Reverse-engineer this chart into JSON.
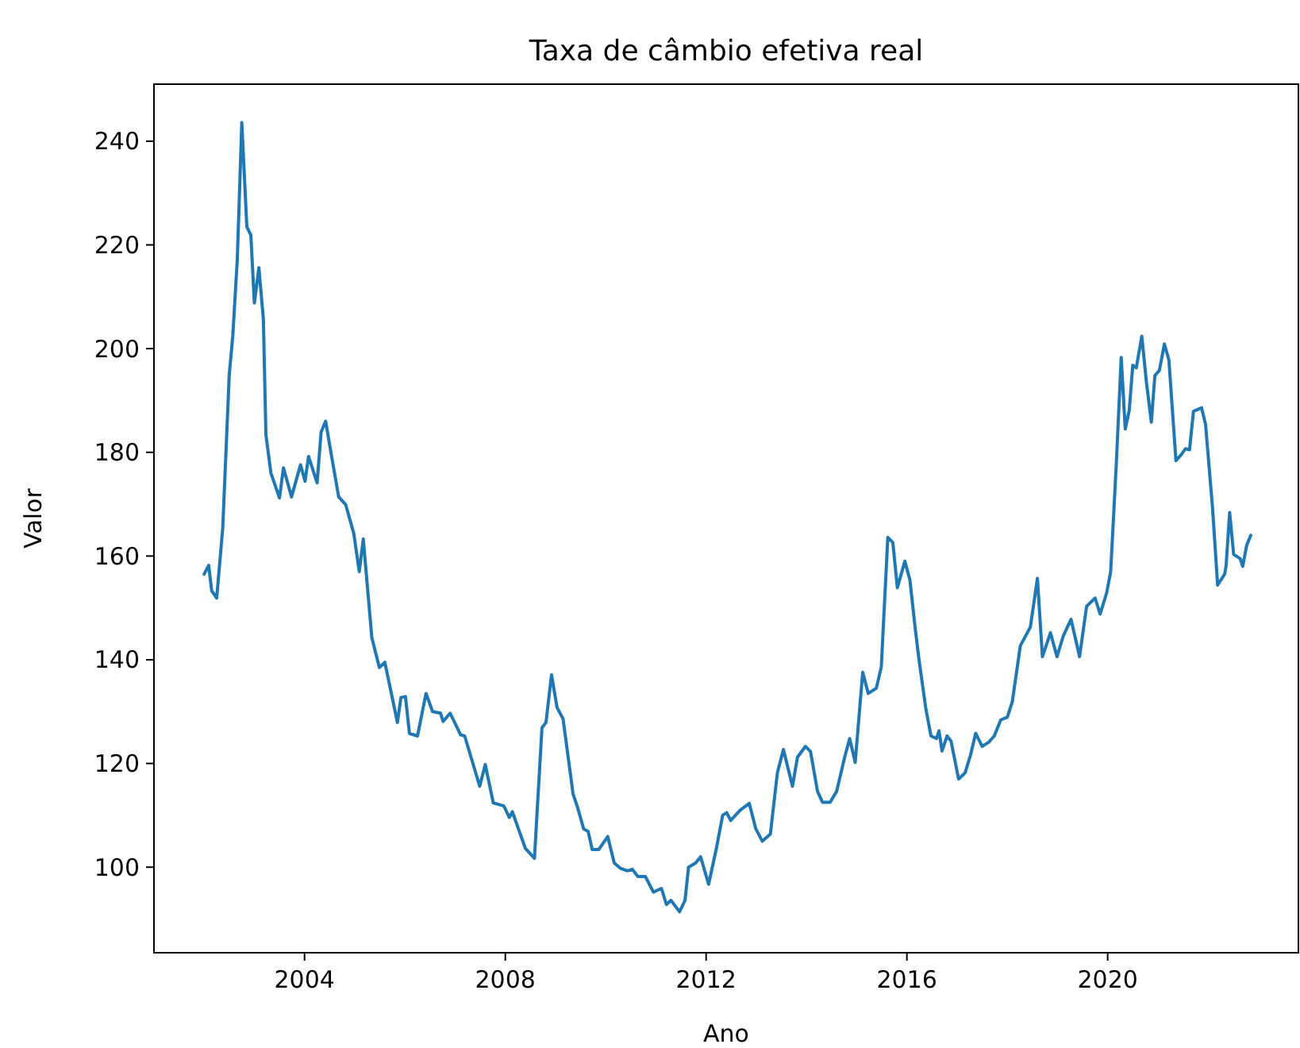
{
  "chart_data": {
    "type": "line",
    "title": "Taxa de câmbio efetiva real",
    "xlabel": "Ano",
    "ylabel": "Valor",
    "xlim": [
      2001.0,
      2023.8
    ],
    "ylim": [
      83.5,
      251
    ],
    "xticks": [
      2004,
      2008,
      2012,
      2016,
      2020
    ],
    "yticks": [
      100,
      120,
      140,
      160,
      180,
      200,
      220,
      240
    ],
    "grid": false,
    "series": [
      {
        "color": "#1f77b4",
        "x": [
          2002.0,
          2002.09,
          2002.15,
          2002.25,
          2002.37,
          2002.5,
          2002.57,
          2002.66,
          2002.75,
          2002.85,
          2002.93,
          2003.0,
          2003.09,
          2003.18,
          2003.23,
          2003.33,
          2003.5,
          2003.58,
          2003.74,
          2003.92,
          2004.01,
          2004.08,
          2004.25,
          2004.33,
          2004.42,
          2004.53,
          2004.68,
          2004.82,
          2004.98,
          2005.09,
          2005.17,
          2005.34,
          2005.49,
          2005.6,
          2005.85,
          2005.92,
          2006.01,
          2006.09,
          2006.25,
          2006.42,
          2006.55,
          2006.71,
          2006.76,
          2006.9,
          2007.11,
          2007.19,
          2007.49,
          2007.6,
          2007.76,
          2007.97,
          2008.08,
          2008.14,
          2008.4,
          2008.58,
          2008.73,
          2008.81,
          2008.92,
          2009.03,
          2009.15,
          2009.35,
          2009.44,
          2009.56,
          2009.65,
          2009.73,
          2009.86,
          2010.04,
          2010.17,
          2010.29,
          2010.43,
          2010.53,
          2010.64,
          2010.79,
          2010.95,
          2011.11,
          2011.21,
          2011.3,
          2011.47,
          2011.58,
          2011.65,
          2011.79,
          2011.89,
          2012.05,
          2012.2,
          2012.33,
          2012.41,
          2012.49,
          2012.68,
          2012.86,
          2012.99,
          2013.12,
          2013.28,
          2013.42,
          2013.54,
          2013.72,
          2013.82,
          2013.98,
          2014.08,
          2014.22,
          2014.32,
          2014.47,
          2014.6,
          2014.76,
          2014.86,
          2014.97,
          2015.12,
          2015.23,
          2015.39,
          2015.49,
          2015.62,
          2015.72,
          2015.81,
          2015.96,
          2016.06,
          2016.17,
          2016.24,
          2016.38,
          2016.48,
          2016.59,
          2016.64,
          2016.7,
          2016.8,
          2016.88,
          2017.03,
          2017.16,
          2017.27,
          2017.37,
          2017.5,
          2017.63,
          2017.74,
          2017.87,
          2018.0,
          2018.1,
          2018.26,
          2018.46,
          2018.6,
          2018.7,
          2018.86,
          2018.99,
          2019.12,
          2019.27,
          2019.44,
          2019.58,
          2019.75,
          2019.85,
          2019.98,
          2020.06,
          2020.17,
          2020.27,
          2020.35,
          2020.43,
          2020.5,
          2020.57,
          2020.68,
          2020.77,
          2020.87,
          2020.94,
          2021.03,
          2021.13,
          2021.22,
          2021.36,
          2021.47,
          2021.55,
          2021.63,
          2021.71,
          2021.87,
          2021.95,
          2022.09,
          2022.19,
          2022.33,
          2022.36,
          2022.43,
          2022.51,
          2022.64,
          2022.69,
          2022.77,
          2022.85
        ],
        "values": [
          156.5,
          158.2,
          153.3,
          151.9,
          165.4,
          195,
          202.4,
          217.2,
          243.6,
          223.5,
          221.9,
          208.8,
          215.6,
          205.6,
          183.4,
          176,
          171.2,
          177,
          171.4,
          177.6,
          174.4,
          179.2,
          174.1,
          183.9,
          186,
          179.7,
          171.4,
          169.9,
          164.4,
          157,
          163.3,
          144.3,
          138.5,
          139.5,
          127.9,
          132.7,
          132.9,
          125.8,
          125.3,
          133.5,
          130,
          129.7,
          128.1,
          129.7,
          125.5,
          125.3,
          115.6,
          119.8,
          112.4,
          111.8,
          109.6,
          110.7,
          103.6,
          101.7,
          126.9,
          127.9,
          137.1,
          130.8,
          128.6,
          114.1,
          111.5,
          107.4,
          106.9,
          103.4,
          103.4,
          105.9,
          100.8,
          99.8,
          99.3,
          99.6,
          98.2,
          98.2,
          95.2,
          95.9,
          92.8,
          93.6,
          91.4,
          93.6,
          100,
          100.8,
          102,
          96.7,
          103.4,
          110,
          110.5,
          109,
          111,
          112.3,
          107.4,
          105,
          106.4,
          118.2,
          122.7,
          115.6,
          121.2,
          123.3,
          122.3,
          114.6,
          112.5,
          112.5,
          114.6,
          121.2,
          124.8,
          120.2,
          137.6,
          133.5,
          134.5,
          138.6,
          163.6,
          162.6,
          153.9,
          159,
          155.4,
          145.7,
          140.1,
          130.4,
          125.3,
          124.8,
          126.3,
          122.4,
          125.3,
          124.3,
          117,
          118.2,
          121.7,
          125.8,
          123.3,
          124.1,
          125.3,
          128.4,
          128.9,
          131.9,
          142.7,
          146.3,
          155.7,
          140.6,
          145.2,
          140.6,
          144.7,
          147.8,
          140.6,
          150.3,
          151.9,
          148.8,
          152.9,
          157,
          177.4,
          198.3,
          184.5,
          188.1,
          196.8,
          196.3,
          202.4,
          193.7,
          185.8,
          194.8,
          195.8,
          200.9,
          197.8,
          178.4,
          179.6,
          180.7,
          180.5,
          187.9,
          188.6,
          185.4,
          169.2,
          154.4,
          156.5,
          158.2,
          168.4,
          160.3,
          159.5,
          158,
          162.1,
          164
        ]
      }
    ]
  }
}
